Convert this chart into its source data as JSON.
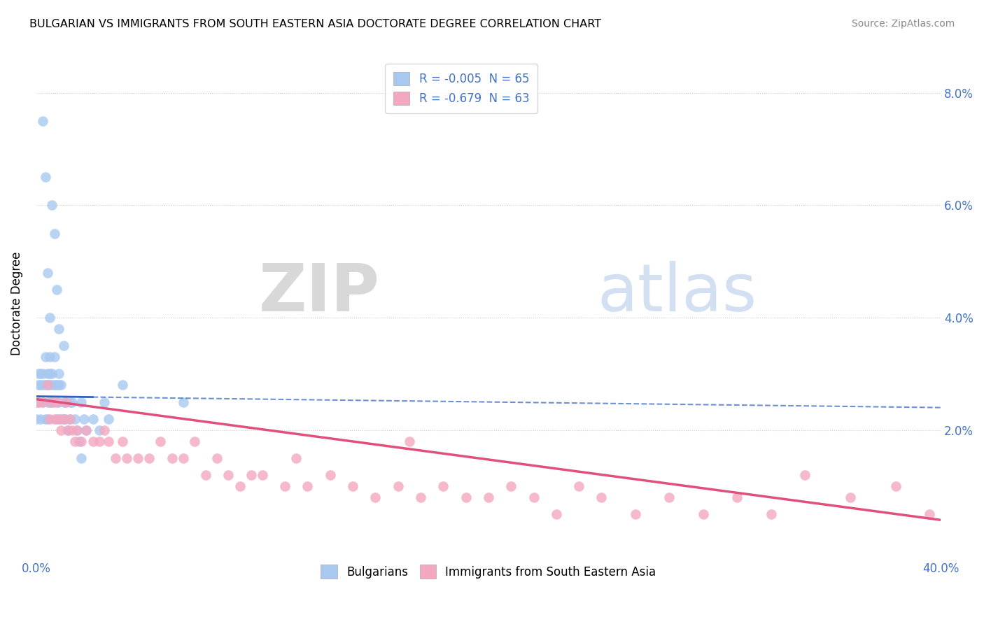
{
  "title": "BULGARIAN VS IMMIGRANTS FROM SOUTH EASTERN ASIA DOCTORATE DEGREE CORRELATION CHART",
  "source": "Source: ZipAtlas.com",
  "ylabel": "Doctorate Degree",
  "xlim": [
    0.0,
    0.4
  ],
  "ylim": [
    -0.003,
    0.088
  ],
  "legend_r1": "R = -0.005  N = 65",
  "legend_r2": "R = -0.679  N = 63",
  "color_blue": "#a8c8f0",
  "color_pink": "#f4a8c0",
  "line_blue": "#3060c0",
  "line_pink": "#e0507a",
  "watermark_zip": "ZIP",
  "watermark_atlas": "atlas",
  "scatter_blue_x": [
    0.0,
    0.0,
    0.001,
    0.001,
    0.001,
    0.002,
    0.002,
    0.002,
    0.003,
    0.003,
    0.003,
    0.004,
    0.004,
    0.004,
    0.005,
    0.005,
    0.005,
    0.005,
    0.006,
    0.006,
    0.006,
    0.006,
    0.007,
    0.007,
    0.007,
    0.008,
    0.008,
    0.008,
    0.009,
    0.009,
    0.01,
    0.01,
    0.01,
    0.011,
    0.011,
    0.012,
    0.012,
    0.013,
    0.013,
    0.014,
    0.015,
    0.015,
    0.016,
    0.017,
    0.018,
    0.019,
    0.02,
    0.021,
    0.022,
    0.025,
    0.028,
    0.03,
    0.032,
    0.038,
    0.003,
    0.004,
    0.005,
    0.006,
    0.007,
    0.008,
    0.009,
    0.01,
    0.012,
    0.065,
    0.02
  ],
  "scatter_blue_y": [
    0.025,
    0.022,
    0.03,
    0.028,
    0.025,
    0.03,
    0.028,
    0.022,
    0.03,
    0.028,
    0.025,
    0.033,
    0.028,
    0.022,
    0.03,
    0.028,
    0.025,
    0.022,
    0.033,
    0.03,
    0.028,
    0.025,
    0.03,
    0.028,
    0.025,
    0.033,
    0.028,
    0.025,
    0.028,
    0.022,
    0.03,
    0.028,
    0.025,
    0.028,
    0.022,
    0.025,
    0.022,
    0.025,
    0.022,
    0.02,
    0.025,
    0.022,
    0.025,
    0.022,
    0.02,
    0.018,
    0.025,
    0.022,
    0.02,
    0.022,
    0.02,
    0.025,
    0.022,
    0.028,
    0.075,
    0.065,
    0.048,
    0.04,
    0.06,
    0.055,
    0.045,
    0.038,
    0.035,
    0.025,
    0.015
  ],
  "scatter_pink_x": [
    0.001,
    0.003,
    0.005,
    0.006,
    0.007,
    0.008,
    0.009,
    0.01,
    0.011,
    0.012,
    0.013,
    0.014,
    0.015,
    0.016,
    0.017,
    0.018,
    0.02,
    0.022,
    0.025,
    0.028,
    0.03,
    0.032,
    0.035,
    0.038,
    0.04,
    0.045,
    0.05,
    0.055,
    0.06,
    0.065,
    0.07,
    0.075,
    0.08,
    0.085,
    0.09,
    0.095,
    0.1,
    0.11,
    0.115,
    0.12,
    0.13,
    0.14,
    0.15,
    0.16,
    0.165,
    0.17,
    0.18,
    0.19,
    0.2,
    0.21,
    0.22,
    0.23,
    0.24,
    0.25,
    0.265,
    0.28,
    0.295,
    0.31,
    0.325,
    0.34,
    0.36,
    0.38,
    0.395
  ],
  "scatter_pink_y": [
    0.025,
    0.025,
    0.028,
    0.022,
    0.025,
    0.022,
    0.025,
    0.022,
    0.02,
    0.022,
    0.025,
    0.02,
    0.022,
    0.02,
    0.018,
    0.02,
    0.018,
    0.02,
    0.018,
    0.018,
    0.02,
    0.018,
    0.015,
    0.018,
    0.015,
    0.015,
    0.015,
    0.018,
    0.015,
    0.015,
    0.018,
    0.012,
    0.015,
    0.012,
    0.01,
    0.012,
    0.012,
    0.01,
    0.015,
    0.01,
    0.012,
    0.01,
    0.008,
    0.01,
    0.018,
    0.008,
    0.01,
    0.008,
    0.008,
    0.01,
    0.008,
    0.005,
    0.01,
    0.008,
    0.005,
    0.008,
    0.005,
    0.008,
    0.005,
    0.012,
    0.008,
    0.01,
    0.005
  ],
  "trend_blue_x0": 0.0,
  "trend_blue_x1": 0.4,
  "trend_blue_y0": 0.026,
  "trend_blue_y1": 0.024,
  "trend_blue_solid_end": 0.025,
  "trend_pink_x0": 0.0,
  "trend_pink_x1": 0.4,
  "trend_pink_y0": 0.0255,
  "trend_pink_y1": 0.004
}
